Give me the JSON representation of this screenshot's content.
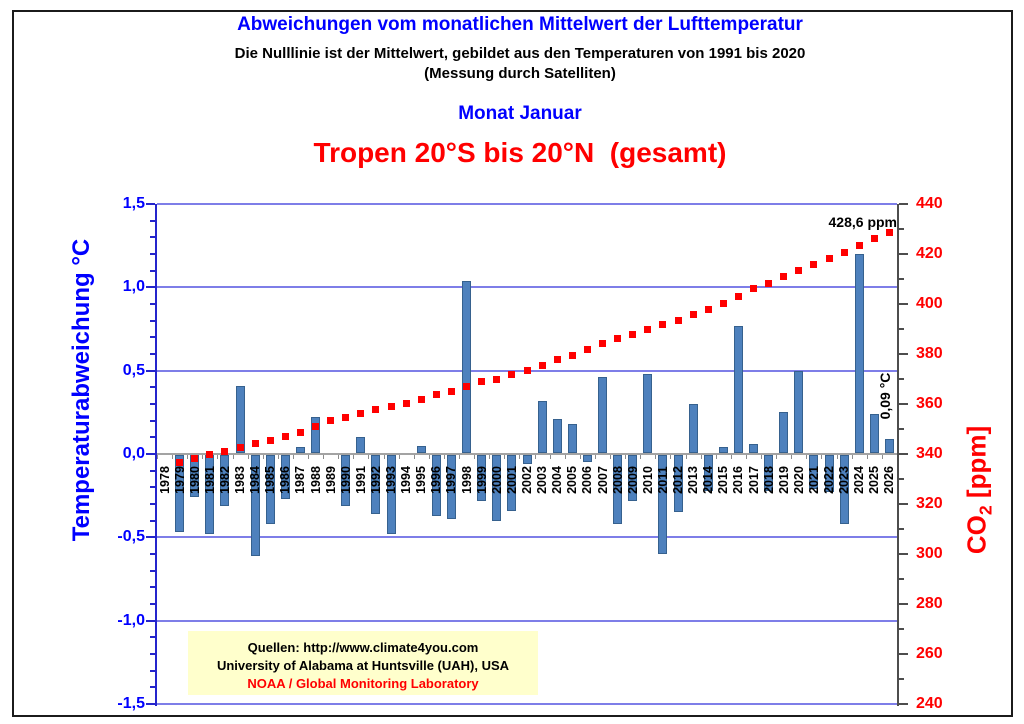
{
  "header": {
    "title": "Abweichungen vom monatlichen Mittelwert der Lufttemperatur",
    "subtitle1": "Die Nulllinie ist der Mittelwert, gebildet aus den Temperaturen von 1991 bis 2020",
    "subtitle2": "(Messung durch Satelliten)",
    "month_line": "Monat Januar",
    "region_line": "Tropen 20°S bis 20°N  (gesamt)"
  },
  "source_box": {
    "line1": "Quellen: http://www.climate4you.com",
    "line2": "University of Alabama at Huntsville (UAH), USA",
    "line3": "NOAA / Global Monitoring Laboratory",
    "bg_color": "#FFFFCC",
    "line3_color": "#FF0000"
  },
  "chart_data": {
    "type": "bar",
    "categories": [
      1978,
      1979,
      1980,
      1981,
      1982,
      1983,
      1984,
      1985,
      1986,
      1987,
      1988,
      1989,
      1990,
      1991,
      1992,
      1993,
      1994,
      1995,
      1996,
      1997,
      1998,
      1999,
      2000,
      2001,
      2002,
      2003,
      2004,
      2005,
      2006,
      2007,
      2008,
      2009,
      2010,
      2011,
      2012,
      2013,
      2014,
      2015,
      2016,
      2017,
      2018,
      2019,
      2020,
      2021,
      2022,
      2023,
      2024,
      2025,
      2026
    ],
    "series": [
      {
        "name": "Temperaturabweichung",
        "type": "bar",
        "color": "#4E81BD",
        "values": [
          null,
          -0.47,
          -0.26,
          -0.48,
          -0.31,
          0.41,
          -0.61,
          -0.42,
          -0.27,
          0.04,
          0.22,
          0,
          -0.31,
          0.1,
          -0.36,
          -0.48,
          0,
          0.05,
          -0.37,
          -0.39,
          1.04,
          -0.28,
          -0.4,
          -0.34,
          -0.06,
          0.32,
          0.21,
          0.18,
          -0.05,
          0.46,
          -0.42,
          -0.28,
          0.48,
          -0.6,
          -0.35,
          0.3,
          -0.22,
          0.04,
          0.77,
          0.06,
          -0.22,
          0.25,
          0.5,
          -0.21,
          -0.23,
          -0.42,
          1.2,
          0.24,
          0.09
        ]
      },
      {
        "name": "CO2",
        "type": "scatter",
        "marker": "square",
        "color": "#FF0000",
        "values": [
          null,
          336.6,
          338.3,
          339.7,
          341.0,
          342.5,
          344.1,
          345.6,
          347.1,
          348.6,
          351.0,
          353.3,
          354.8,
          356.3,
          358.0,
          358.9,
          360.4,
          361.9,
          363.8,
          365.0,
          366.9,
          369.0,
          369.8,
          371.7,
          373.6,
          375.6,
          377.8,
          379.6,
          382.0,
          384.1,
          386.1,
          387.8,
          389.9,
          391.9,
          393.5,
          395.9,
          398.0,
          400.2,
          403.1,
          406.3,
          408.2,
          411.0,
          413.6,
          415.7,
          418.2,
          420.5,
          423.4,
          426.4,
          428.6
        ]
      }
    ],
    "left_axis": {
      "title": "Temperaturabweichung °C",
      "min": -1.5,
      "max": 1.5,
      "major": 0.5,
      "minor": 0.1,
      "tick_labels": [
        "1,5",
        "1,0",
        "0,5",
        "0,0",
        "-0,5",
        "-1,0",
        "-1,5"
      ],
      "color": "#0000FF",
      "line_color": "#2525CC"
    },
    "right_axis": {
      "title": "CO2 [ppm]",
      "min": 240,
      "max": 440,
      "major": 20,
      "minor": 10,
      "tick_labels": [
        "440",
        "420",
        "400",
        "380",
        "360",
        "340",
        "320",
        "300",
        "280",
        "260",
        "240"
      ],
      "color": "#FF0000",
      "line_color": "#4D4D4D"
    },
    "annotations": [
      {
        "id": "co2-last",
        "text": "428,6 ppm"
      },
      {
        "id": "temp-last",
        "text": "0,09 °C"
      }
    ],
    "grid": true,
    "gridline_color": "#7E7EE8",
    "zero_line_color": "#A3A3A3",
    "category_tick_color": "#8C8C8C"
  }
}
